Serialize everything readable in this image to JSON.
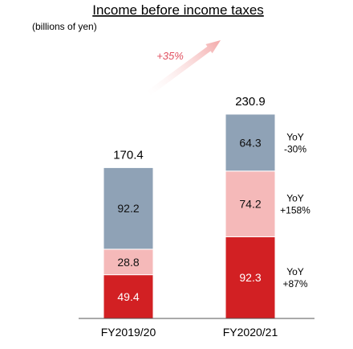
{
  "chart_data": {
    "type": "bar",
    "stacked": true,
    "title": "Income before income taxes",
    "unit_label": "(billions of yen)",
    "categories": [
      "FY2019/20",
      "FY2020/21"
    ],
    "totals": [
      170.4,
      230.9
    ],
    "series": [
      {
        "values": [
          49.4,
          92.3
        ],
        "color": "#d22023",
        "label_color": "#ffffff"
      },
      {
        "values": [
          28.8,
          74.2
        ],
        "color": "#f5b9b9",
        "label_color": "#111111"
      },
      {
        "values": [
          92.2,
          64.3
        ],
        "color": "#8fa2b6",
        "label_color": "#111111"
      }
    ],
    "yoy_annotations": [
      {
        "label": "YoY",
        "value": "+87%",
        "series_index": 0
      },
      {
        "label": "YoY",
        "value": "+158%",
        "series_index": 1
      },
      {
        "label": "YoY",
        "value": "-30%",
        "series_index": 2
      }
    ],
    "growth_label": "+35%",
    "arrow_color": "#f3a9a9",
    "ylim": [
      0,
      240
    ]
  }
}
